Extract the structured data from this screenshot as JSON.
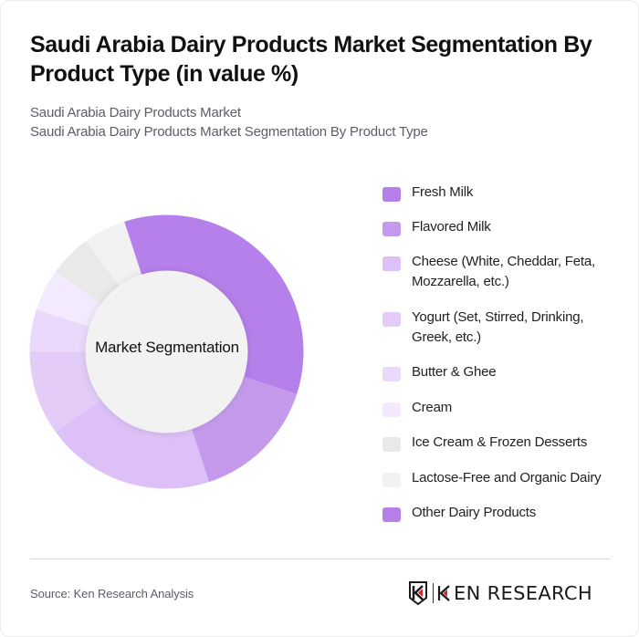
{
  "header": {
    "title": "Saudi Arabia Dairy Products Market Segmentation By Product Type (in value %)",
    "subtitle_line1": "Saudi Arabia Dairy Products Market",
    "subtitle_line2": "Saudi Arabia Dairy Products Market Segmentation By Product Type"
  },
  "chart_data": {
    "type": "pie",
    "subtype": "donut",
    "title": "Saudi Arabia Dairy Products Market Segmentation By Product Type (in value %)",
    "center_label": "Market Segmentation",
    "categories": [
      "Fresh Milk",
      "Flavored Milk",
      "Cheese (White, Cheddar, Feta, Mozzarella, etc.)",
      "Yogurt (Set, Stirred, Drinking, Greek, etc.)",
      "Butter & Ghee",
      "Cream",
      "Ice Cream & Frozen Desserts",
      "Lactose-Free and Organic Dairy",
      "Other Dairy Products"
    ],
    "values": [
      35,
      15,
      20,
      10,
      5,
      5,
      5,
      5,
      0
    ],
    "colors": [
      "#b580ea",
      "#c59aec",
      "#dcc0f7",
      "#e3ccf8",
      "#ead9fa",
      "#f3ebfd",
      "#e9e9e9",
      "#f2f2f2",
      "#b580ea"
    ],
    "start_angle_deg": 342,
    "legend_position": "right",
    "unit": "%"
  },
  "legend": {
    "items": [
      {
        "label": "Fresh Milk",
        "color": "#b580ea"
      },
      {
        "label": "Flavored Milk",
        "color": "#c59aec"
      },
      {
        "label": "Cheese (White, Cheddar, Feta, Mozzarella, etc.)",
        "color": "#dcc0f7"
      },
      {
        "label": "Yogurt (Set, Stirred, Drinking, Greek, etc.)",
        "color": "#e3ccf8"
      },
      {
        "label": "Butter & Ghee",
        "color": "#ead9fa"
      },
      {
        "label": "Cream",
        "color": "#f3ebfd"
      },
      {
        "label": "Ice Cream & Frozen Desserts",
        "color": "#e9e9e9"
      },
      {
        "label": "Lactose-Free and Organic Dairy",
        "color": "#f2f2f2"
      },
      {
        "label": "Other Dairy Products",
        "color": "#b580ea"
      }
    ]
  },
  "footer": {
    "source": "Source: Ken Research Analysis",
    "logo_text": "KEN RESEARCH"
  }
}
